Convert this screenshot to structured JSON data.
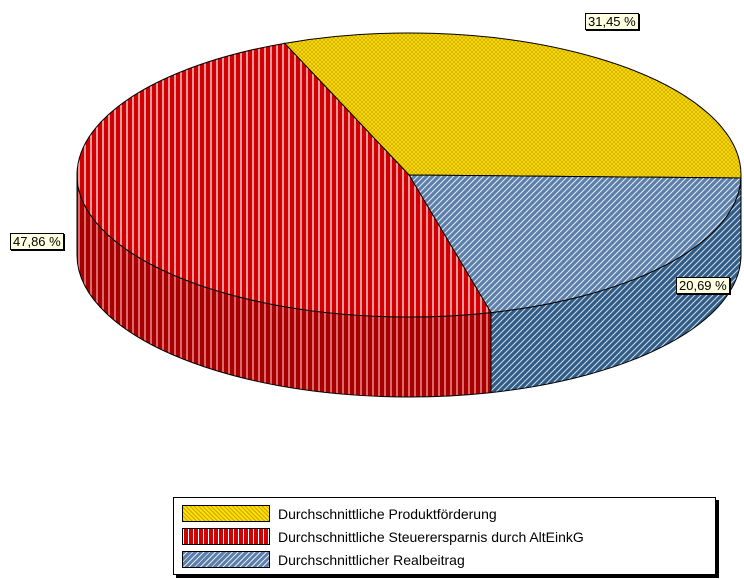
{
  "chart_data": {
    "type": "pie",
    "variant": "3d",
    "start_angle_deg": -112,
    "slices": [
      {
        "name": "Durchschnittliche Produktförderung",
        "value": 31.45,
        "label": "31,45 %",
        "color": "#ffde00",
        "pattern": "crosshatch"
      },
      {
        "name": "Durchschnittlicher Realbeitrag",
        "value": 20.69,
        "label": "20,69 %",
        "color": "#5b7fa8",
        "pattern": "diagonal"
      },
      {
        "name": "Durchschnittliche Steuerersparnis durch AltEinkG",
        "value": 47.86,
        "label": "47,86 %",
        "color": "#d20000",
        "pattern": "vertical"
      }
    ],
    "legend": {
      "position": "bottom",
      "items": [
        {
          "label": "Durchschnittliche Produktförderung",
          "color": "#ffde00",
          "pattern": "crosshatch"
        },
        {
          "label": "Durchschnittliche Steuerersparnis durch AltEinkG",
          "color": "#d20000",
          "pattern": "vertical"
        },
        {
          "label": "Durchschnittlicher Realbeitrag",
          "color": "#5b7fa8",
          "pattern": "diagonal"
        }
      ]
    }
  }
}
